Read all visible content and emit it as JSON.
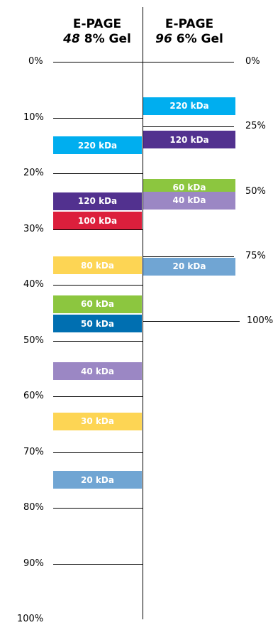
{
  "columns": [
    {
      "title": "E-PAGE",
      "lane_number": "48",
      "gel_label": " 8% Gel"
    },
    {
      "title": "E-PAGE",
      "lane_number": "96",
      "gel_label": " 6% Gel"
    }
  ],
  "left_scale": {
    "label_suffix": "%",
    "ticks": [
      0,
      10,
      20,
      30,
      40,
      50,
      60,
      70,
      80,
      90,
      100
    ]
  },
  "right_scale": {
    "label_suffix": "%",
    "ticks": [
      0,
      25,
      50,
      75,
      100
    ]
  },
  "left_bands": [
    {
      "label": "220 kDa",
      "migration_percent": 15,
      "color": "#00AEEF"
    },
    {
      "label": "120 kDa",
      "migration_percent": 25,
      "color": "#52318F"
    },
    {
      "label": "100 kDa",
      "migration_percent": 28.5,
      "color": "#DC1F3C"
    },
    {
      "label": "80 kDa",
      "migration_percent": 36.5,
      "color": "#FDD554"
    },
    {
      "label": "60 kDa",
      "migration_percent": 43.5,
      "color": "#8CC63F"
    },
    {
      "label": "50 kDa",
      "migration_percent": 47,
      "color": "#006FB1"
    },
    {
      "label": "40 kDa",
      "migration_percent": 55.5,
      "color": "#9B87C4"
    },
    {
      "label": "30 kDa",
      "migration_percent": 64.5,
      "color": "#FDD554"
    },
    {
      "label": "20 kDa",
      "migration_percent": 75,
      "color": "#70A5D3"
    }
  ],
  "right_bands": [
    {
      "label": "220 kDa",
      "migration_percent": 17,
      "color": "#00AEEF"
    },
    {
      "label": "120 kDa",
      "migration_percent": 30,
      "color": "#52318F"
    },
    {
      "label": "60 kDa",
      "migration_percent": 48.5,
      "color": "#8CC63F"
    },
    {
      "label": "40 kDa",
      "migration_percent": 53.5,
      "color": "#9B87C4"
    },
    {
      "label": "20 kDa",
      "migration_percent": 79,
      "color": "#70A5D3"
    }
  ]
}
